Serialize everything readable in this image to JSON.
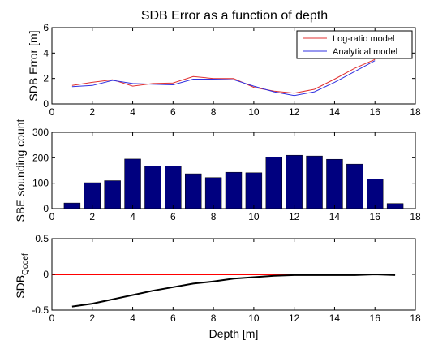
{
  "title": "SDB Error as a function of depth",
  "chart_data": [
    {
      "type": "line",
      "ylabel": "SDB Error [m]",
      "xlim": [
        0,
        18
      ],
      "ylim": [
        0,
        6
      ],
      "xticks": [
        0,
        2,
        4,
        6,
        8,
        10,
        12,
        14,
        16,
        18
      ],
      "yticks": [
        0,
        2,
        4,
        6
      ],
      "legend_position": "top-right",
      "series": [
        {
          "name": "Log-ratio model",
          "color": "#e03030",
          "x": [
            1,
            2,
            3,
            4,
            5,
            6,
            7,
            8,
            9,
            10,
            11,
            12,
            13,
            14,
            15,
            16
          ],
          "y": [
            1.45,
            1.7,
            1.9,
            1.4,
            1.6,
            1.65,
            2.15,
            2.0,
            2.0,
            1.3,
            1.0,
            0.85,
            1.15,
            1.95,
            2.8,
            3.5
          ]
        },
        {
          "name": "Analytical model",
          "color": "#3030e0",
          "x": [
            1,
            2,
            3,
            4,
            5,
            6,
            7,
            8,
            9,
            10,
            11,
            12,
            13,
            14,
            15,
            16
          ],
          "y": [
            1.35,
            1.45,
            1.85,
            1.6,
            1.55,
            1.5,
            1.95,
            1.95,
            1.9,
            1.4,
            0.95,
            0.65,
            0.95,
            1.7,
            2.55,
            3.4
          ]
        }
      ]
    },
    {
      "type": "bar",
      "ylabel": "SBE sounding count",
      "xlim": [
        0,
        18
      ],
      "ylim": [
        0,
        300
      ],
      "xticks": [
        0,
        2,
        4,
        6,
        8,
        10,
        12,
        14,
        16,
        18
      ],
      "yticks": [
        0,
        100,
        200,
        300
      ],
      "color": "#00007f",
      "categories": [
        1,
        2,
        3,
        4,
        5,
        6,
        7,
        8,
        9,
        10,
        11,
        12,
        13,
        14,
        15,
        16,
        17
      ],
      "values": [
        22,
        102,
        110,
        195,
        168,
        167,
        137,
        122,
        143,
        141,
        202,
        210,
        207,
        194,
        175,
        117,
        20
      ]
    },
    {
      "type": "line",
      "ylabel_main": "SDB",
      "ylabel_sub": "Qcoef",
      "xlabel": "Depth [m]",
      "xlim": [
        0,
        18
      ],
      "ylim": [
        -0.5,
        0.5
      ],
      "xticks": [
        0,
        2,
        4,
        6,
        8,
        10,
        12,
        14,
        16,
        18
      ],
      "yticks": [
        -0.5,
        0,
        0.5
      ],
      "series": [
        {
          "color": "#ff0000",
          "x": [
            0,
            16.5
          ],
          "y": [
            0,
            0
          ]
        },
        {
          "color": "#000000",
          "x": [
            1,
            2,
            3,
            4,
            5,
            6,
            7,
            8,
            9,
            10,
            11,
            12,
            13,
            14,
            15,
            16,
            17
          ],
          "y": [
            -0.45,
            -0.41,
            -0.35,
            -0.29,
            -0.23,
            -0.18,
            -0.13,
            -0.1,
            -0.06,
            -0.04,
            -0.02,
            -0.01,
            -0.01,
            -0.01,
            -0.01,
            0.0,
            -0.01
          ]
        }
      ]
    }
  ]
}
